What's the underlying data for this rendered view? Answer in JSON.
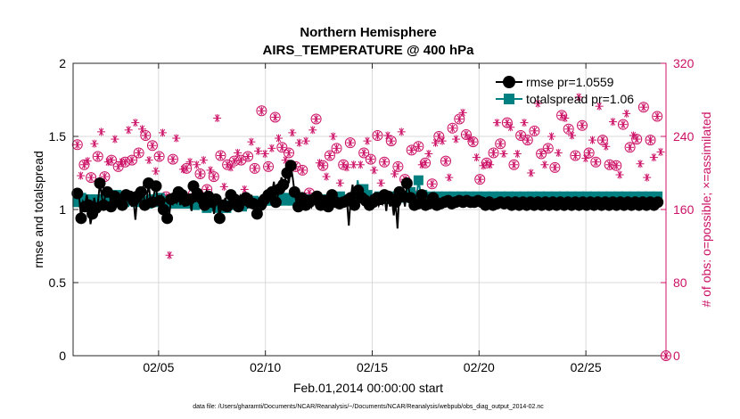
{
  "colors": {
    "rmse": "#000000",
    "totalspread": "#008080",
    "obs": "#cc1166",
    "grid": "#d9d9d9",
    "axis": "#262626"
  },
  "icons": {
    "possible_marker": "circle-with-asterisk",
    "assimilated_marker": "asterisk",
    "rmse_marker": "filled-circle",
    "totalspread_marker": "filled-square"
  },
  "chart_data": {
    "type": "line",
    "title": "Northern Hemisphere",
    "subtitle": "AIRS_TEMPERATURE @ 400 hPa",
    "xlabel": "Feb.01,2014 00:00:00 start",
    "ylabel_left": "rmse and totalspread",
    "ylabel_right": "# of obs: o=possible; ×=assimilated",
    "footnote": "data file: /Users/gharamti/Documents/NCAR/Reanalysis/~/Documents/NCAR/Reanalysis/webpub/obs_diag_output_2014-02.nc",
    "xlim": [
      1,
      28.75
    ],
    "ylim_left": [
      0,
      2
    ],
    "ylim_right": [
      0,
      320
    ],
    "x_ticks": [
      5,
      10,
      15,
      20,
      25
    ],
    "x_tick_labels": [
      "02/05",
      "02/10",
      "02/15",
      "02/20",
      "02/25"
    ],
    "y_left_ticks": [
      0,
      0.5,
      1,
      1.5,
      2
    ],
    "y_left_tick_labels": [
      "0",
      "0.5",
      "1",
      "1.5",
      "2"
    ],
    "y_right_ticks": [
      0,
      80,
      160,
      240,
      320
    ],
    "y_right_tick_labels": [
      "0",
      "80",
      "160",
      "240",
      "320"
    ],
    "grid": true,
    "legend_position": "top-right",
    "legend": [
      {
        "label": "rmse pr=1.0559",
        "marker": "filled-circle",
        "color": "#000000"
      },
      {
        "label": "totalspread pr=1.06",
        "marker": "filled-square",
        "color": "#008080"
      }
    ],
    "series": [
      {
        "name": "rmse",
        "axis": "left",
        "values": [
          1.11,
          1.08,
          0.94,
          1.05,
          1.02,
          1.1,
          1.03,
          0.9,
          0.97,
          1.08,
          1.01,
          1.05,
          1.18,
          1.09,
          1.03,
          1.1,
          1.12,
          1.14,
          1.02,
          1.05,
          1.09,
          1.08,
          1.07,
          1.01,
          1.03,
          1.05,
          1.1,
          1.08,
          1.09,
          1.02,
          1.06,
          0.93,
          1.09,
          1.05,
          1.12,
          1.15,
          1.03,
          1.06,
          1.18,
          1.07,
          1.05,
          1.11,
          1.16,
          1.04,
          1.06,
          1.09,
          1.0,
          1.02,
          0.94,
          0.95,
          1.07,
          1.04,
          1.08,
          1.05,
          1.12,
          1.03,
          1.1,
          1.02,
          1.06,
          1.08,
          1.07,
          0.99,
          1.16,
          1.05,
          1.11,
          1.04,
          1.08,
          1.02,
          1.03,
          1.12,
          1.09,
          1.04,
          1.05,
          0.97,
          1.07,
          1.05,
          0.94,
          1.05,
          1.03,
          1.08,
          1.02,
          1.05,
          1.1,
          1.03,
          1.07,
          1.05,
          1.02,
          1.09,
          1.06,
          1.04,
          1.08,
          1.02,
          1.05,
          1.1,
          1.04,
          1.05,
          0.97,
          1.08,
          1.03,
          1.06,
          1.07,
          1.04,
          1.1,
          1.08,
          1.12,
          1.19,
          1.05,
          1.09,
          1.14,
          1.22,
          1.17,
          1.2,
          1.25,
          1.18,
          1.3,
          1.22,
          1.12,
          1.05,
          1.02,
          1.04,
          1.08,
          1.06,
          1.03,
          1.1,
          1.05,
          1.02,
          1.07,
          1.04,
          1.09,
          1.05,
          1.03,
          1.08,
          1.06,
          1.04,
          1.02,
          1.05,
          1.1,
          1.08,
          1.05,
          1.07,
          1.04,
          1.06,
          1.05,
          1.03,
          1.06,
          0.89,
          1.08,
          1.17,
          1.03,
          1.15,
          1.13,
          1.06,
          1.08,
          1.04,
          1.06,
          1.02,
          1.03,
          1.1,
          1.05,
          1.04,
          1.08,
          1.03,
          1.07,
          1.04,
          1.1,
          0.99,
          1.09,
          1.02,
          1.07,
          0.96,
          1.05,
          0.87,
          1.12,
          1.05,
          1.09,
          1.02,
          1.18,
          1.14,
          1.08,
          1.06,
          1.03,
          1.05,
          1.04,
          1.08,
          1.1,
          1.05,
          1.03,
          1.07,
          1.04,
          1.06,
          1.08,
          1.05,
          1.03,
          1.07,
          1.04,
          1.06,
          1.05,
          1.03,
          1.06,
          1.05,
          1.04,
          1.07,
          1.05,
          1.03,
          1.06,
          1.04,
          1.05,
          1.03,
          1.06,
          1.04,
          1.05,
          1.03,
          1.05,
          1.04,
          1.06,
          1.03,
          1.05,
          1.04,
          1.03,
          1.06,
          1.05,
          1.04,
          1.03,
          1.05,
          1.04,
          1.03,
          1.05,
          1.04,
          1.04,
          1.03,
          1.05,
          1.04,
          1.03,
          1.04,
          1.05,
          1.04,
          1.03,
          1.04,
          1.05,
          1.04,
          1.03,
          1.04,
          1.05,
          1.04,
          1.03,
          1.04,
          1.05,
          1.04,
          1.03,
          1.04,
          1.05,
          1.04,
          1.03,
          1.04,
          1.05,
          1.04,
          1.03,
          1.04,
          1.05,
          1.04,
          1.03,
          1.04,
          1.05,
          1.04,
          1.03,
          1.04,
          1.05,
          1.04,
          1.03,
          1.04,
          1.05,
          1.04,
          1.03,
          1.04,
          1.05,
          1.04,
          1.03,
          1.04,
          1.05,
          1.04,
          1.03,
          1.04,
          1.05,
          1.04,
          1.03,
          1.04,
          1.05,
          1.04,
          1.03,
          1.04,
          1.05,
          1.04,
          1.03,
          1.04,
          1.05,
          1.04,
          1.03,
          1.04,
          1.05,
          1.04,
          1.03,
          1.04,
          1.05,
          1.04,
          1.03,
          1.04,
          1.05,
          1.04,
          1.03,
          1.04,
          1.05,
          1.04
        ]
      },
      {
        "name": "totalspread",
        "axis": "left",
        "values": [
          1.05,
          1.07,
          1.08,
          1.06,
          1.04,
          1.05,
          1.07,
          1.08,
          1.06,
          1.05,
          1.07,
          1.08,
          1.07,
          1.06,
          1.05,
          1.07,
          1.09,
          1.08,
          1.06,
          1.07,
          1.1,
          1.08,
          1.07,
          1.06,
          1.05,
          1.06,
          1.07,
          1.08,
          1.06,
          1.05,
          1.05,
          1.04,
          1.06,
          1.07,
          1.06,
          1.05,
          1.04,
          1.06,
          1.07,
          1.06,
          1.05,
          1.07,
          1.08,
          1.06,
          1.05,
          1.07,
          1.06,
          1.05,
          1.04,
          1.03,
          1.04,
          1.05,
          1.04,
          1.03,
          1.04,
          1.05,
          1.04,
          1.03,
          1.04,
          1.02,
          1.03,
          1.02,
          1.04,
          1.03,
          1.04,
          1.02,
          1.01,
          1.03,
          1.02,
          1.01,
          1.03,
          1.02,
          1.01,
          1.02,
          1.03,
          1.02,
          1.01,
          1.02,
          1.03,
          1.04,
          1.03,
          1.02,
          1.04,
          1.03,
          1.02,
          1.04,
          1.05,
          1.03,
          1.04,
          1.05,
          1.06,
          1.04,
          1.05,
          1.06,
          1.05,
          1.04,
          1.06,
          1.05,
          1.06,
          1.07,
          1.06,
          1.05,
          1.06,
          1.07,
          1.08,
          1.07,
          1.06,
          1.07,
          1.08,
          1.07,
          1.06,
          1.07,
          1.08,
          1.09,
          1.07,
          1.08,
          1.07,
          1.06,
          1.07,
          1.08,
          1.07,
          1.06,
          1.07,
          1.08,
          1.07,
          1.06,
          1.07,
          1.08,
          1.07,
          1.06,
          1.07,
          1.08,
          1.07,
          1.08,
          1.09,
          1.08,
          1.07,
          1.08,
          1.07,
          1.08,
          1.06,
          1.07,
          1.08,
          1.2,
          1.08,
          1.1,
          1.14,
          1.12,
          1.1,
          1.08,
          1.07,
          1.08,
          1.07,
          1.08,
          1.09,
          1.08,
          1.07,
          1.08,
          1.09,
          1.08,
          1.07,
          1.08,
          1.09,
          1.1,
          1.08,
          1.09,
          1.08,
          1.07,
          1.08,
          1.09,
          1.12,
          1.08,
          1.09,
          1.08,
          1.2,
          1.12,
          1.1,
          1.08,
          1.07,
          1.08,
          1.09,
          1.08,
          1.07,
          1.08,
          1.09,
          1.08,
          1.07,
          1.08,
          1.09,
          1.08,
          1.07,
          1.08,
          1.09,
          1.08,
          1.07,
          1.08,
          1.09,
          1.08,
          1.07,
          1.08,
          1.09,
          1.08,
          1.07,
          1.08,
          1.09,
          1.08,
          1.07,
          1.08,
          1.09,
          1.08,
          1.07,
          1.08,
          1.09,
          1.08,
          1.07,
          1.08,
          1.09,
          1.08,
          1.07,
          1.08,
          1.09,
          1.08,
          1.07,
          1.08,
          1.09,
          1.08,
          1.07,
          1.08,
          1.09,
          1.08,
          1.07,
          1.08,
          1.09,
          1.08,
          1.07,
          1.08,
          1.09,
          1.08,
          1.07,
          1.08,
          1.09,
          1.08,
          1.07,
          1.08,
          1.09,
          1.08,
          1.07,
          1.08,
          1.09,
          1.08,
          1.07,
          1.08,
          1.09,
          1.08,
          1.07,
          1.08,
          1.09,
          1.08,
          1.07,
          1.08,
          1.09,
          1.08,
          1.07,
          1.08,
          1.09,
          1.08,
          1.07,
          1.08,
          1.09,
          1.08,
          1.07,
          1.08,
          1.09,
          1.08,
          1.07,
          1.08,
          1.09,
          1.08,
          1.07,
          1.08,
          1.09,
          1.08,
          1.07,
          1.08,
          1.09,
          1.08,
          1.07,
          1.08,
          1.09,
          1.08,
          1.07,
          1.08,
          1.09,
          1.08,
          1.07,
          1.08,
          1.09,
          1.08
        ]
      }
    ],
    "obs_possible": [
      231,
      197,
      209,
      213,
      195,
      232,
      218,
      245,
      196,
      212,
      214,
      237,
      207,
      212,
      212,
      247,
      214,
      255,
      222,
      248,
      241,
      214,
      230,
      202,
      218,
      244,
      174,
      110,
      215,
      238,
      177,
      204,
      205,
      212,
      177,
      209,
      199,
      214,
      182,
      203,
      196,
      260,
      219,
      185,
      209,
      206,
      213,
      222,
      214,
      182,
      218,
      234,
      205,
      224,
      268,
      221,
      207,
      227,
      261,
      238,
      228,
      214,
      222,
      244,
      207,
      233,
      203,
      235,
      178,
      247,
      259,
      211,
      208,
      196,
      219,
      240,
      227,
      189,
      209,
      206,
      233,
      209,
      175,
      209,
      222,
      235,
      215,
      203,
      241,
      189,
      212,
      241,
      235,
      199,
      207,
      245,
      193,
      186,
      225,
      178,
      229,
      209,
      211,
      221,
      188,
      233,
      240,
      235,
      213,
      195,
      249,
      237,
      259,
      266,
      242,
      238,
      234,
      217,
      193,
      208,
      211,
      209,
      222,
      255,
      232,
      221,
      255,
      250,
      209,
      221,
      241,
      255,
      236,
      200,
      246,
      276,
      221,
      209,
      227,
      240,
      206,
      222,
      263,
      260,
      248,
      241,
      219,
      283,
      252,
      216,
      222,
      236,
      212,
      273,
      236,
      229,
      209,
      256,
      208,
      198,
      253,
      265,
      228,
      241,
      237,
      210,
      272,
      195,
      236,
      217,
      262,
      223
    ],
    "obs_assimilated": [
      231,
      197,
      209,
      213,
      195,
      232,
      218,
      245,
      196,
      212,
      214,
      237,
      207,
      212,
      212,
      247,
      214,
      255,
      222,
      248,
      241,
      214,
      230,
      202,
      218,
      244,
      174,
      110,
      215,
      238,
      177,
      204,
      205,
      212,
      177,
      209,
      199,
      214,
      182,
      203,
      196,
      260,
      219,
      185,
      209,
      206,
      213,
      222,
      214,
      182,
      218,
      234,
      205,
      224,
      268,
      221,
      207,
      227,
      261,
      238,
      228,
      214,
      222,
      244,
      207,
      233,
      203,
      235,
      178,
      247,
      259,
      211,
      208,
      196,
      219,
      240,
      227,
      189,
      209,
      206,
      233,
      209,
      175,
      209,
      222,
      235,
      215,
      203,
      241,
      189,
      212,
      241,
      235,
      199,
      207,
      245,
      193,
      186,
      225,
      178,
      229,
      209,
      211,
      221,
      188,
      233,
      240,
      235,
      213,
      195,
      249,
      237,
      259,
      266,
      242,
      238,
      234,
      217,
      193,
      208,
      211,
      209,
      222,
      255,
      232,
      221,
      255,
      250,
      209,
      221,
      241,
      255,
      236,
      200,
      246,
      276,
      221,
      209,
      227,
      240,
      206,
      222,
      263,
      260,
      248,
      241,
      219,
      283,
      252,
      216,
      222,
      236,
      212,
      273,
      236,
      229,
      209,
      256,
      208,
      198,
      253,
      265,
      228,
      241,
      237,
      210,
      272,
      195,
      236,
      217,
      262,
      223
    ],
    "obs_possible_extra_point": {
      "x": 28.75,
      "value": 0
    }
  }
}
